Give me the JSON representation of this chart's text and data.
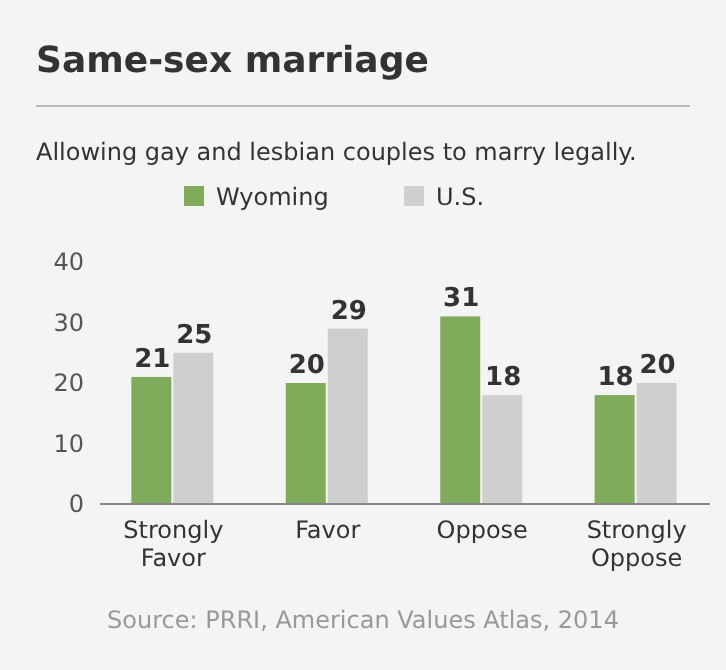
{
  "chart_data": {
    "type": "bar",
    "title": "Same-sex marriage",
    "subtitle": "Allowing gay and lesbian couples to marry legally.",
    "categories": [
      "Strongly Favor",
      "Favor",
      "Oppose",
      "Strongly Oppose"
    ],
    "series": [
      {
        "name": "Wyoming",
        "color": "#7fab5a",
        "values": [
          21,
          20,
          31,
          18
        ]
      },
      {
        "name": "U.S.",
        "color": "#cfcfcf",
        "values": [
          25,
          29,
          18,
          20
        ]
      }
    ],
    "ylim": [
      0,
      40
    ],
    "yticks": [
      0,
      10,
      20,
      30,
      40
    ],
    "data_labels": true,
    "legend": "top left",
    "grid": false,
    "annotations": [
      "Source: PRRI, American Values Atlas, 2014"
    ]
  }
}
